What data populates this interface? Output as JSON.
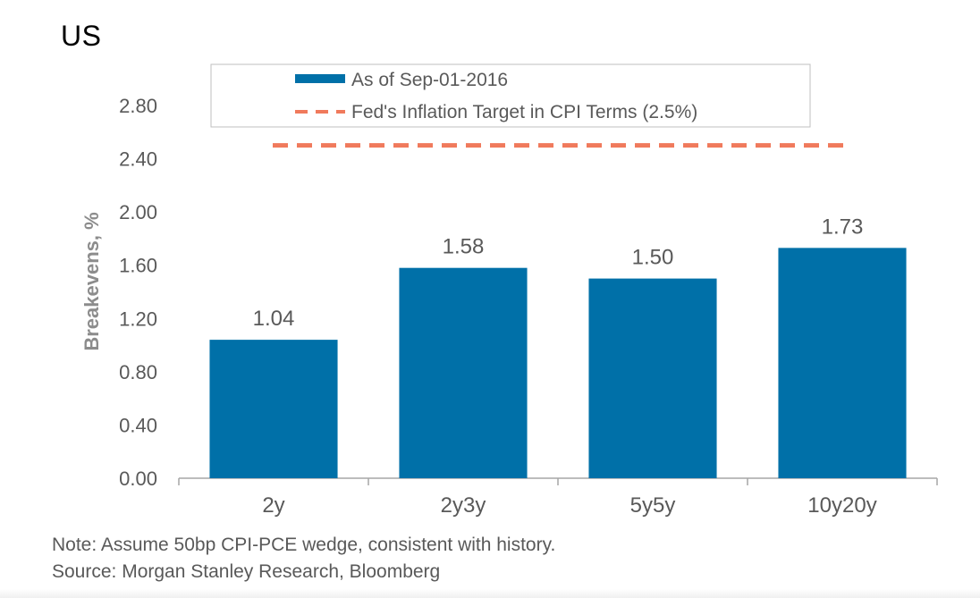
{
  "page_title": "US",
  "chart_data": {
    "type": "bar",
    "categories": [
      "2y",
      "2y3y",
      "5y5y",
      "10y20y"
    ],
    "series": [
      {
        "name": "As of Sep-01-2016",
        "values": [
          1.04,
          1.58,
          1.5,
          1.73
        ],
        "color": "#0070a8"
      }
    ],
    "data_labels": [
      "1.04",
      "1.58",
      "1.50",
      "1.73"
    ],
    "reference_line": {
      "name": "Fed's Inflation Target in CPI Terms (2.5%)",
      "value": 2.5,
      "color": "#f07a5c",
      "style": "dashed"
    },
    "title": "",
    "xlabel": "",
    "ylabel": "Breakevens, %",
    "ylim": [
      0,
      2.8
    ],
    "yticks": [
      "0.00",
      "0.40",
      "0.80",
      "1.20",
      "1.60",
      "2.00",
      "2.40",
      "2.80"
    ],
    "legend_position": "top",
    "grid": false
  },
  "notes": {
    "note": "Note: Assume 50bp CPI-PCE wedge, consistent with history.",
    "source": "Source: Morgan Stanley Research, Bloomberg"
  }
}
